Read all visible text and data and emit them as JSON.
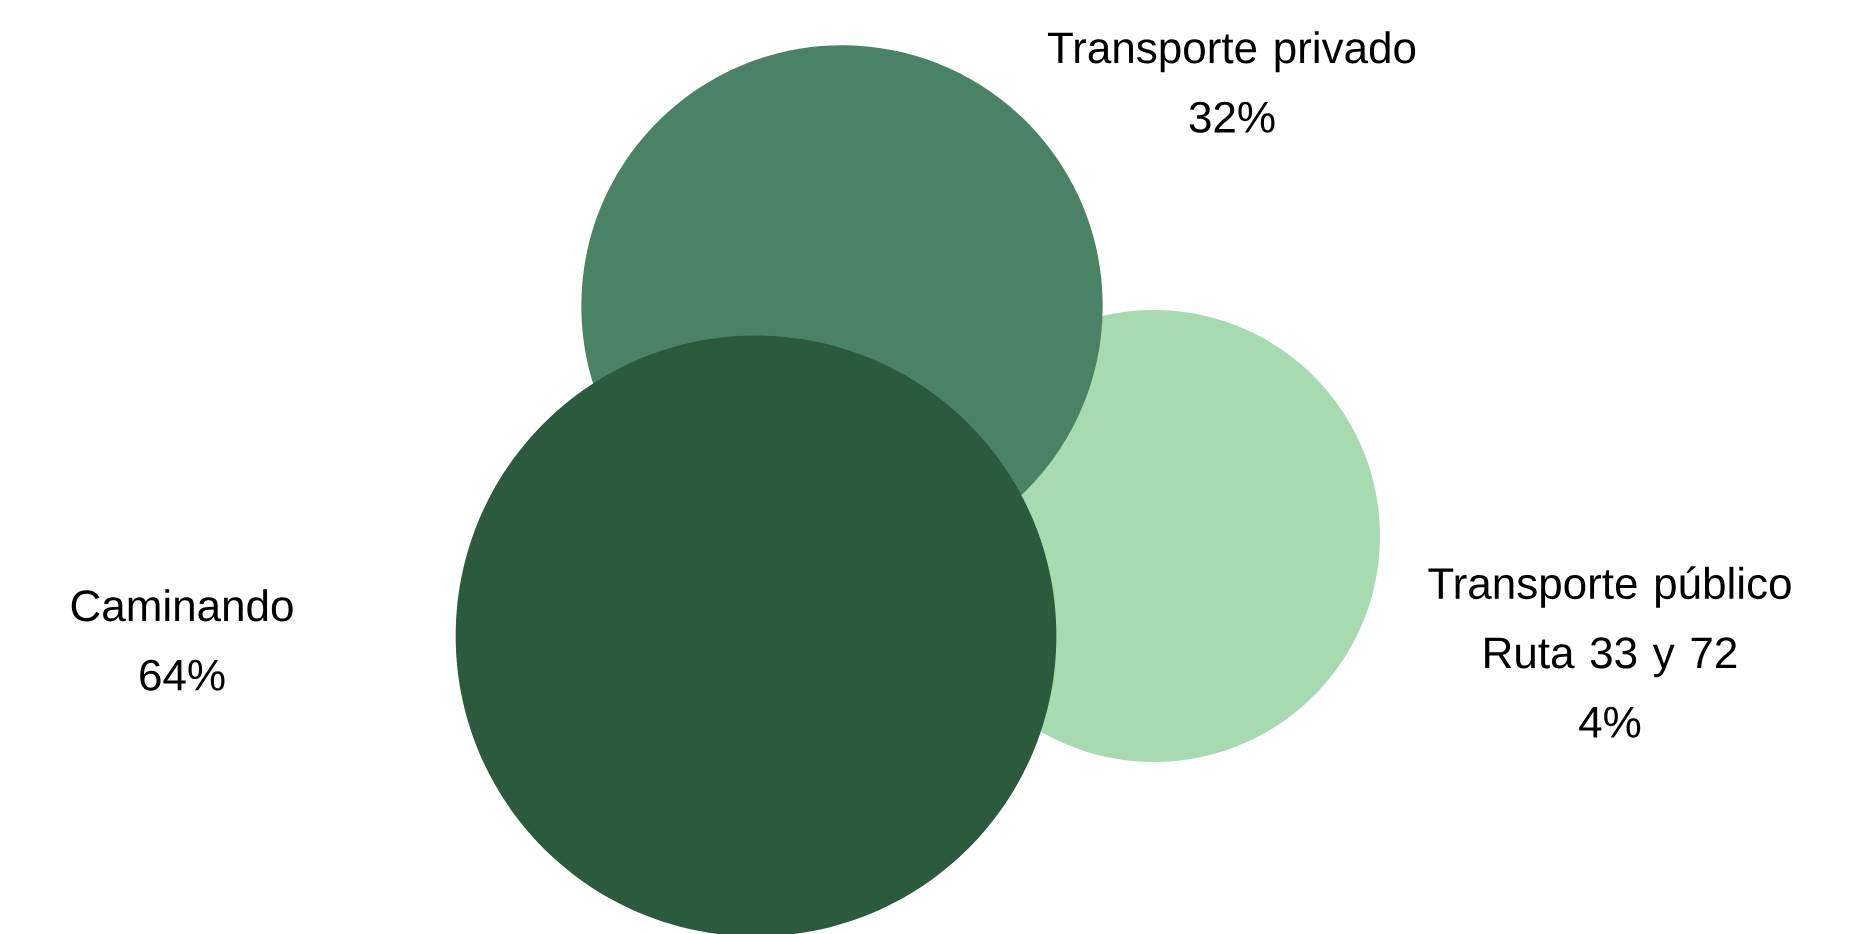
{
  "chart_data": {
    "type": "other",
    "categories": [
      "Caminando",
      "Transporte privado",
      "Transporte público Ruta 33 y 72"
    ],
    "values": [
      64,
      32,
      4
    ],
    "value_labels": [
      "64%",
      "32%",
      "4%"
    ],
    "colors": [
      "#2b5a3c",
      "#4a8265",
      "#a8dab2"
    ]
  }
}
